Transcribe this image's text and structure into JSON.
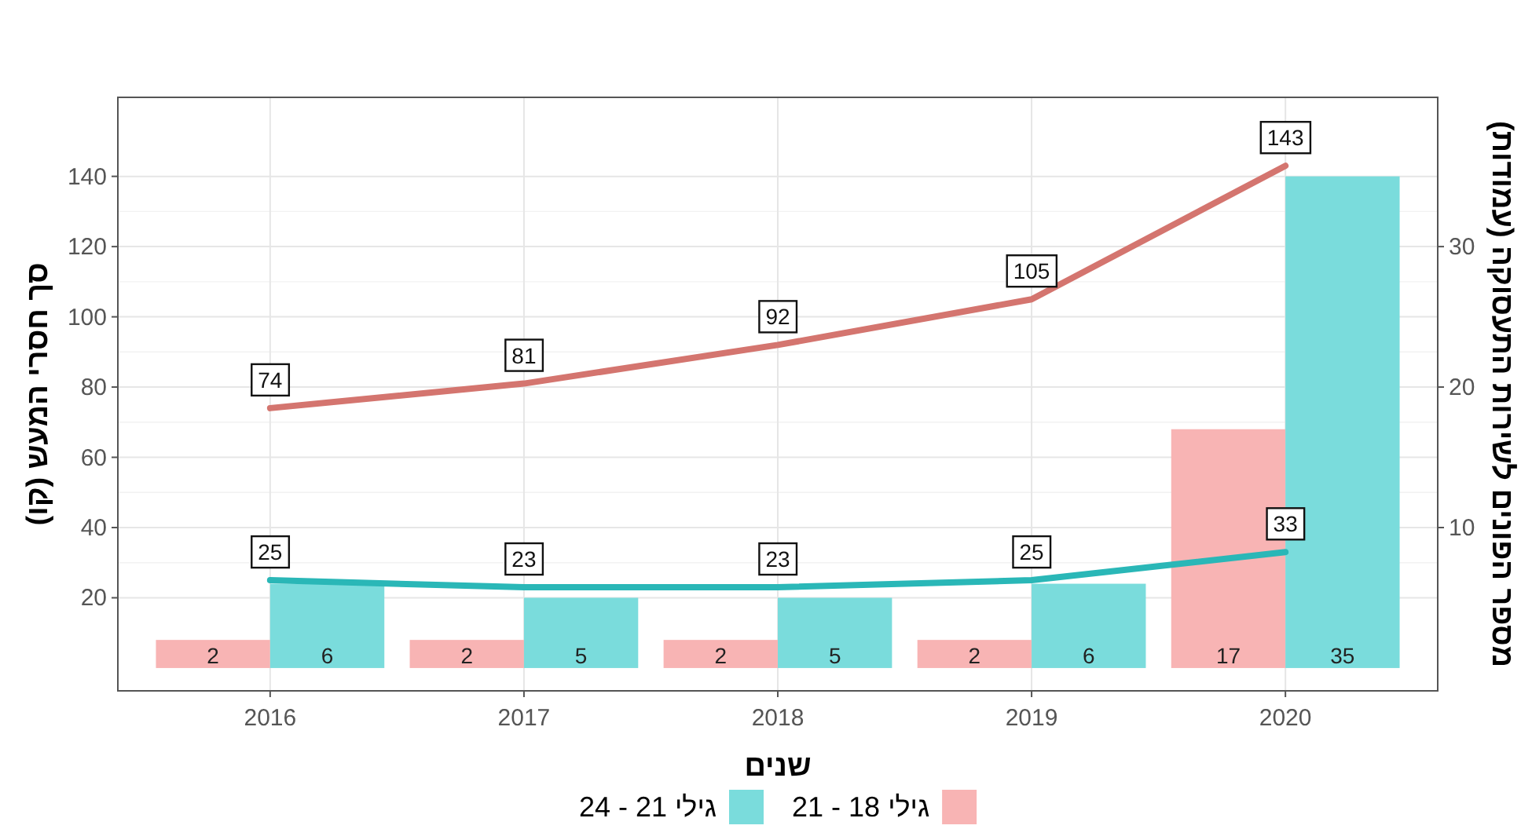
{
  "chart_data": {
    "type": "bar",
    "categories": [
      "2016",
      "2017",
      "2018",
      "2019",
      "2020"
    ],
    "xlabel": "שנים",
    "ylabel": "סך חסרי המעש (קו)",
    "y2label": "מספר הפונים לשירות התעסוקה (עמודות)",
    "ylim": [
      -6.5,
      162.5
    ],
    "yticks": [
      20,
      40,
      60,
      80,
      100,
      120,
      140
    ],
    "y2lim": [
      -1.625,
      40.625
    ],
    "y2ticks": [
      10,
      20,
      30
    ],
    "grid": true,
    "legend": "bottom",
    "data_labels": true,
    "series": [
      {
        "name": "גילי 18 - 21",
        "color": "#f8b4b4",
        "axis": "y2",
        "values": [
          2,
          2,
          2,
          2,
          17
        ]
      },
      {
        "name": "גילי 21 - 24",
        "color": "#7adcdc",
        "axis": "y2",
        "values": [
          6,
          5,
          5,
          6,
          35
        ]
      },
      {
        "type": "line",
        "color": "#d4756f",
        "values": [
          74,
          81,
          92,
          105,
          143
        ]
      },
      {
        "type": "line",
        "color": "#2ab7b7",
        "values": [
          25,
          23,
          23,
          25,
          33
        ]
      }
    ]
  }
}
